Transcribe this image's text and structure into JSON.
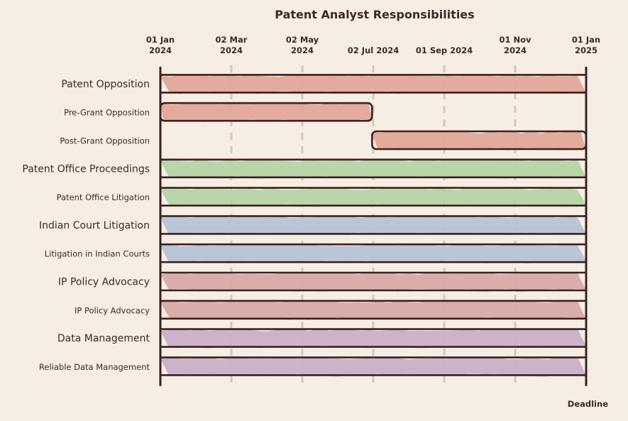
{
  "chart_data": {
    "type": "gantt",
    "title": "Patent Analyst Responsibilities",
    "x_ticks": [
      {
        "date": "2024-01-01",
        "label": [
          "01 Jan",
          "2024"
        ]
      },
      {
        "date": "2024-03-02",
        "label": [
          "02 Mar",
          "2024"
        ]
      },
      {
        "date": "2024-05-02",
        "label": [
          "02 May",
          "2024"
        ]
      },
      {
        "date": "2024-07-02",
        "label": [
          "02 Jul 2024"
        ]
      },
      {
        "date": "2024-09-01",
        "label": [
          "01 Sep 2024"
        ]
      },
      {
        "date": "2024-11-01",
        "label": [
          "01 Nov",
          "2024"
        ]
      },
      {
        "date": "2025-01-01",
        "label": [
          "01 Jan",
          "2025"
        ]
      }
    ],
    "xlim": [
      "2024-01-01",
      "2025-01-01"
    ],
    "grid": true,
    "marker": {
      "date": "2025-01-01",
      "label": "Deadline"
    },
    "rows": [
      {
        "label": "Patent Opposition",
        "kind": "group",
        "start": "2024-01-01",
        "end": "2025-01-01",
        "color": "#e0a898"
      },
      {
        "label": "Pre-Grant Opposition",
        "kind": "task",
        "start": "2024-01-01",
        "end": "2024-07-01",
        "color": "#e0a898"
      },
      {
        "label": "Post-Grant Opposition",
        "kind": "task",
        "start": "2024-07-01",
        "end": "2025-01-01",
        "color": "#e0a898"
      },
      {
        "label": "Patent Office Proceedings",
        "kind": "group",
        "start": "2024-01-01",
        "end": "2025-01-01",
        "color": "#b5d5a8"
      },
      {
        "label": "Patent Office Litigation",
        "kind": "task",
        "start": "2024-01-01",
        "end": "2025-01-01",
        "color": "#b5d5a8"
      },
      {
        "label": "Indian Court Litigation",
        "kind": "group",
        "start": "2024-01-01",
        "end": "2025-01-01",
        "color": "#b6c4d6"
      },
      {
        "label": "Litigation in Indian Courts",
        "kind": "task",
        "start": "2024-01-01",
        "end": "2025-01-01",
        "color": "#b6c4d6"
      },
      {
        "label": "IP Policy Advocacy",
        "kind": "group",
        "start": "2024-01-01",
        "end": "2025-01-01",
        "color": "#d8a9a6"
      },
      {
        "label": "IP Policy Advocacy",
        "kind": "task",
        "start": "2024-01-01",
        "end": "2025-01-01",
        "color": "#d8a9a6"
      },
      {
        "label": "Data Management",
        "kind": "group",
        "start": "2024-01-01",
        "end": "2025-01-01",
        "color": "#c9b0c8"
      },
      {
        "label": "Reliable Data Management",
        "kind": "task",
        "start": "2024-01-01",
        "end": "2025-01-01",
        "color": "#c9b0c8"
      }
    ],
    "colors": {
      "outline": "#3a2220",
      "grid": "#d2c8bd",
      "background": "#f6ede3"
    }
  }
}
